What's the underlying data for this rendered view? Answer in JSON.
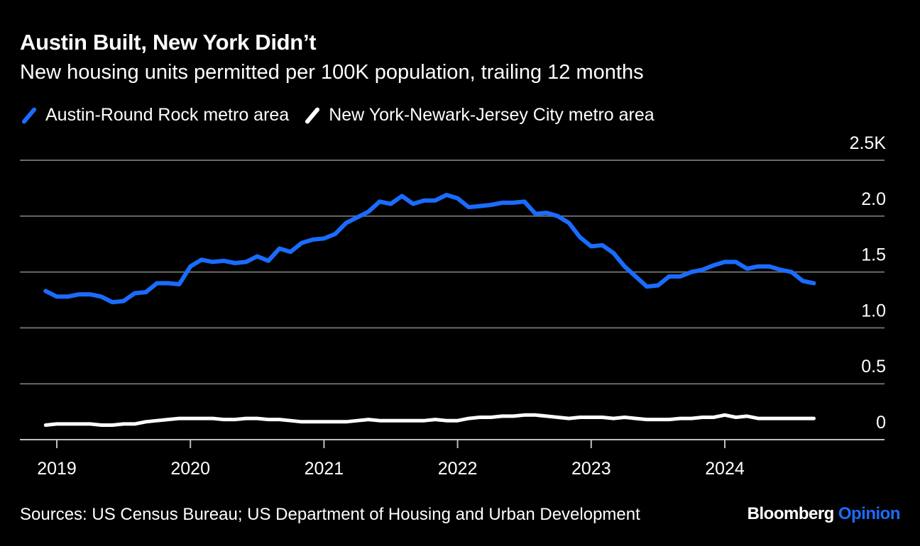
{
  "title": "Austin Built, New York Didn’t",
  "subtitle": "New housing units permitted per 100K population, trailing 12 months",
  "source": "Sources: US Census Bureau; US Department of Housing and Urban Development",
  "brand": {
    "name": "Bloomberg",
    "section": "Opinion",
    "section_color": "#1a6cff"
  },
  "colors": {
    "background": "#000000",
    "gridline": "#6b6b6b",
    "axis": "#bfbfbf",
    "text": "#ffffff"
  },
  "chart_data": {
    "type": "line",
    "title": "Austin Built, New York Didn’t",
    "subtitle": "New housing units permitted per 100K population, trailing 12 months",
    "xlabel": "",
    "ylabel": "",
    "x_ticks": [
      "2019",
      "2020",
      "2021",
      "2022",
      "2023",
      "2024"
    ],
    "y_ticks": [
      0,
      0.5,
      1.0,
      1.5,
      2.0,
      2.5
    ],
    "y_tick_labels": [
      "0",
      "0.5",
      "1.0",
      "1.5",
      "2.0",
      "2.5K"
    ],
    "ylim": [
      0,
      2.5
    ],
    "grid": true,
    "legend_position": "top-left",
    "x_start": "2018-12",
    "x_end": "2024-09",
    "x": [
      "2018-12",
      "2019-01",
      "2019-02",
      "2019-03",
      "2019-04",
      "2019-05",
      "2019-06",
      "2019-07",
      "2019-08",
      "2019-09",
      "2019-10",
      "2019-11",
      "2019-12",
      "2020-01",
      "2020-02",
      "2020-03",
      "2020-04",
      "2020-05",
      "2020-06",
      "2020-07",
      "2020-08",
      "2020-09",
      "2020-10",
      "2020-11",
      "2020-12",
      "2021-01",
      "2021-02",
      "2021-03",
      "2021-04",
      "2021-05",
      "2021-06",
      "2021-07",
      "2021-08",
      "2021-09",
      "2021-10",
      "2021-11",
      "2021-12",
      "2022-01",
      "2022-02",
      "2022-03",
      "2022-04",
      "2022-05",
      "2022-06",
      "2022-07",
      "2022-08",
      "2022-09",
      "2022-10",
      "2022-11",
      "2022-12",
      "2023-01",
      "2023-02",
      "2023-03",
      "2023-04",
      "2023-05",
      "2023-06",
      "2023-07",
      "2023-08",
      "2023-09",
      "2023-10",
      "2023-11",
      "2023-12",
      "2024-01",
      "2024-02",
      "2024-03",
      "2024-04",
      "2024-05",
      "2024-06",
      "2024-07",
      "2024-08",
      "2024-09"
    ],
    "series": [
      {
        "name": "Austin-Round Rock metro area",
        "color": "#1a6cff",
        "values": [
          1.33,
          1.28,
          1.28,
          1.3,
          1.3,
          1.28,
          1.23,
          1.24,
          1.31,
          1.32,
          1.4,
          1.4,
          1.39,
          1.55,
          1.61,
          1.59,
          1.6,
          1.58,
          1.59,
          1.64,
          1.6,
          1.71,
          1.68,
          1.76,
          1.79,
          1.8,
          1.84,
          1.94,
          1.99,
          2.04,
          2.13,
          2.11,
          2.18,
          2.11,
          2.14,
          2.14,
          2.19,
          2.16,
          2.08,
          2.09,
          2.1,
          2.12,
          2.12,
          2.13,
          2.02,
          2.03,
          2.0,
          1.94,
          1.81,
          1.73,
          1.74,
          1.67,
          1.55,
          1.46,
          1.37,
          1.38,
          1.46,
          1.46,
          1.5,
          1.52,
          1.56,
          1.59,
          1.59,
          1.53,
          1.55,
          1.55,
          1.52,
          1.5,
          1.42,
          1.4
        ]
      },
      {
        "name": "New York-Newark-Jersey City metro area",
        "color": "#ffffff",
        "values": [
          0.13,
          0.14,
          0.14,
          0.14,
          0.14,
          0.13,
          0.13,
          0.14,
          0.14,
          0.16,
          0.17,
          0.18,
          0.19,
          0.19,
          0.19,
          0.19,
          0.18,
          0.18,
          0.19,
          0.19,
          0.18,
          0.18,
          0.17,
          0.16,
          0.16,
          0.16,
          0.16,
          0.16,
          0.17,
          0.18,
          0.17,
          0.17,
          0.17,
          0.17,
          0.17,
          0.18,
          0.17,
          0.17,
          0.19,
          0.2,
          0.2,
          0.21,
          0.21,
          0.22,
          0.22,
          0.21,
          0.2,
          0.19,
          0.2,
          0.2,
          0.2,
          0.19,
          0.2,
          0.19,
          0.18,
          0.18,
          0.18,
          0.19,
          0.19,
          0.2,
          0.2,
          0.22,
          0.2,
          0.21,
          0.19,
          0.19,
          0.19,
          0.19,
          0.19,
          0.19
        ]
      }
    ]
  }
}
